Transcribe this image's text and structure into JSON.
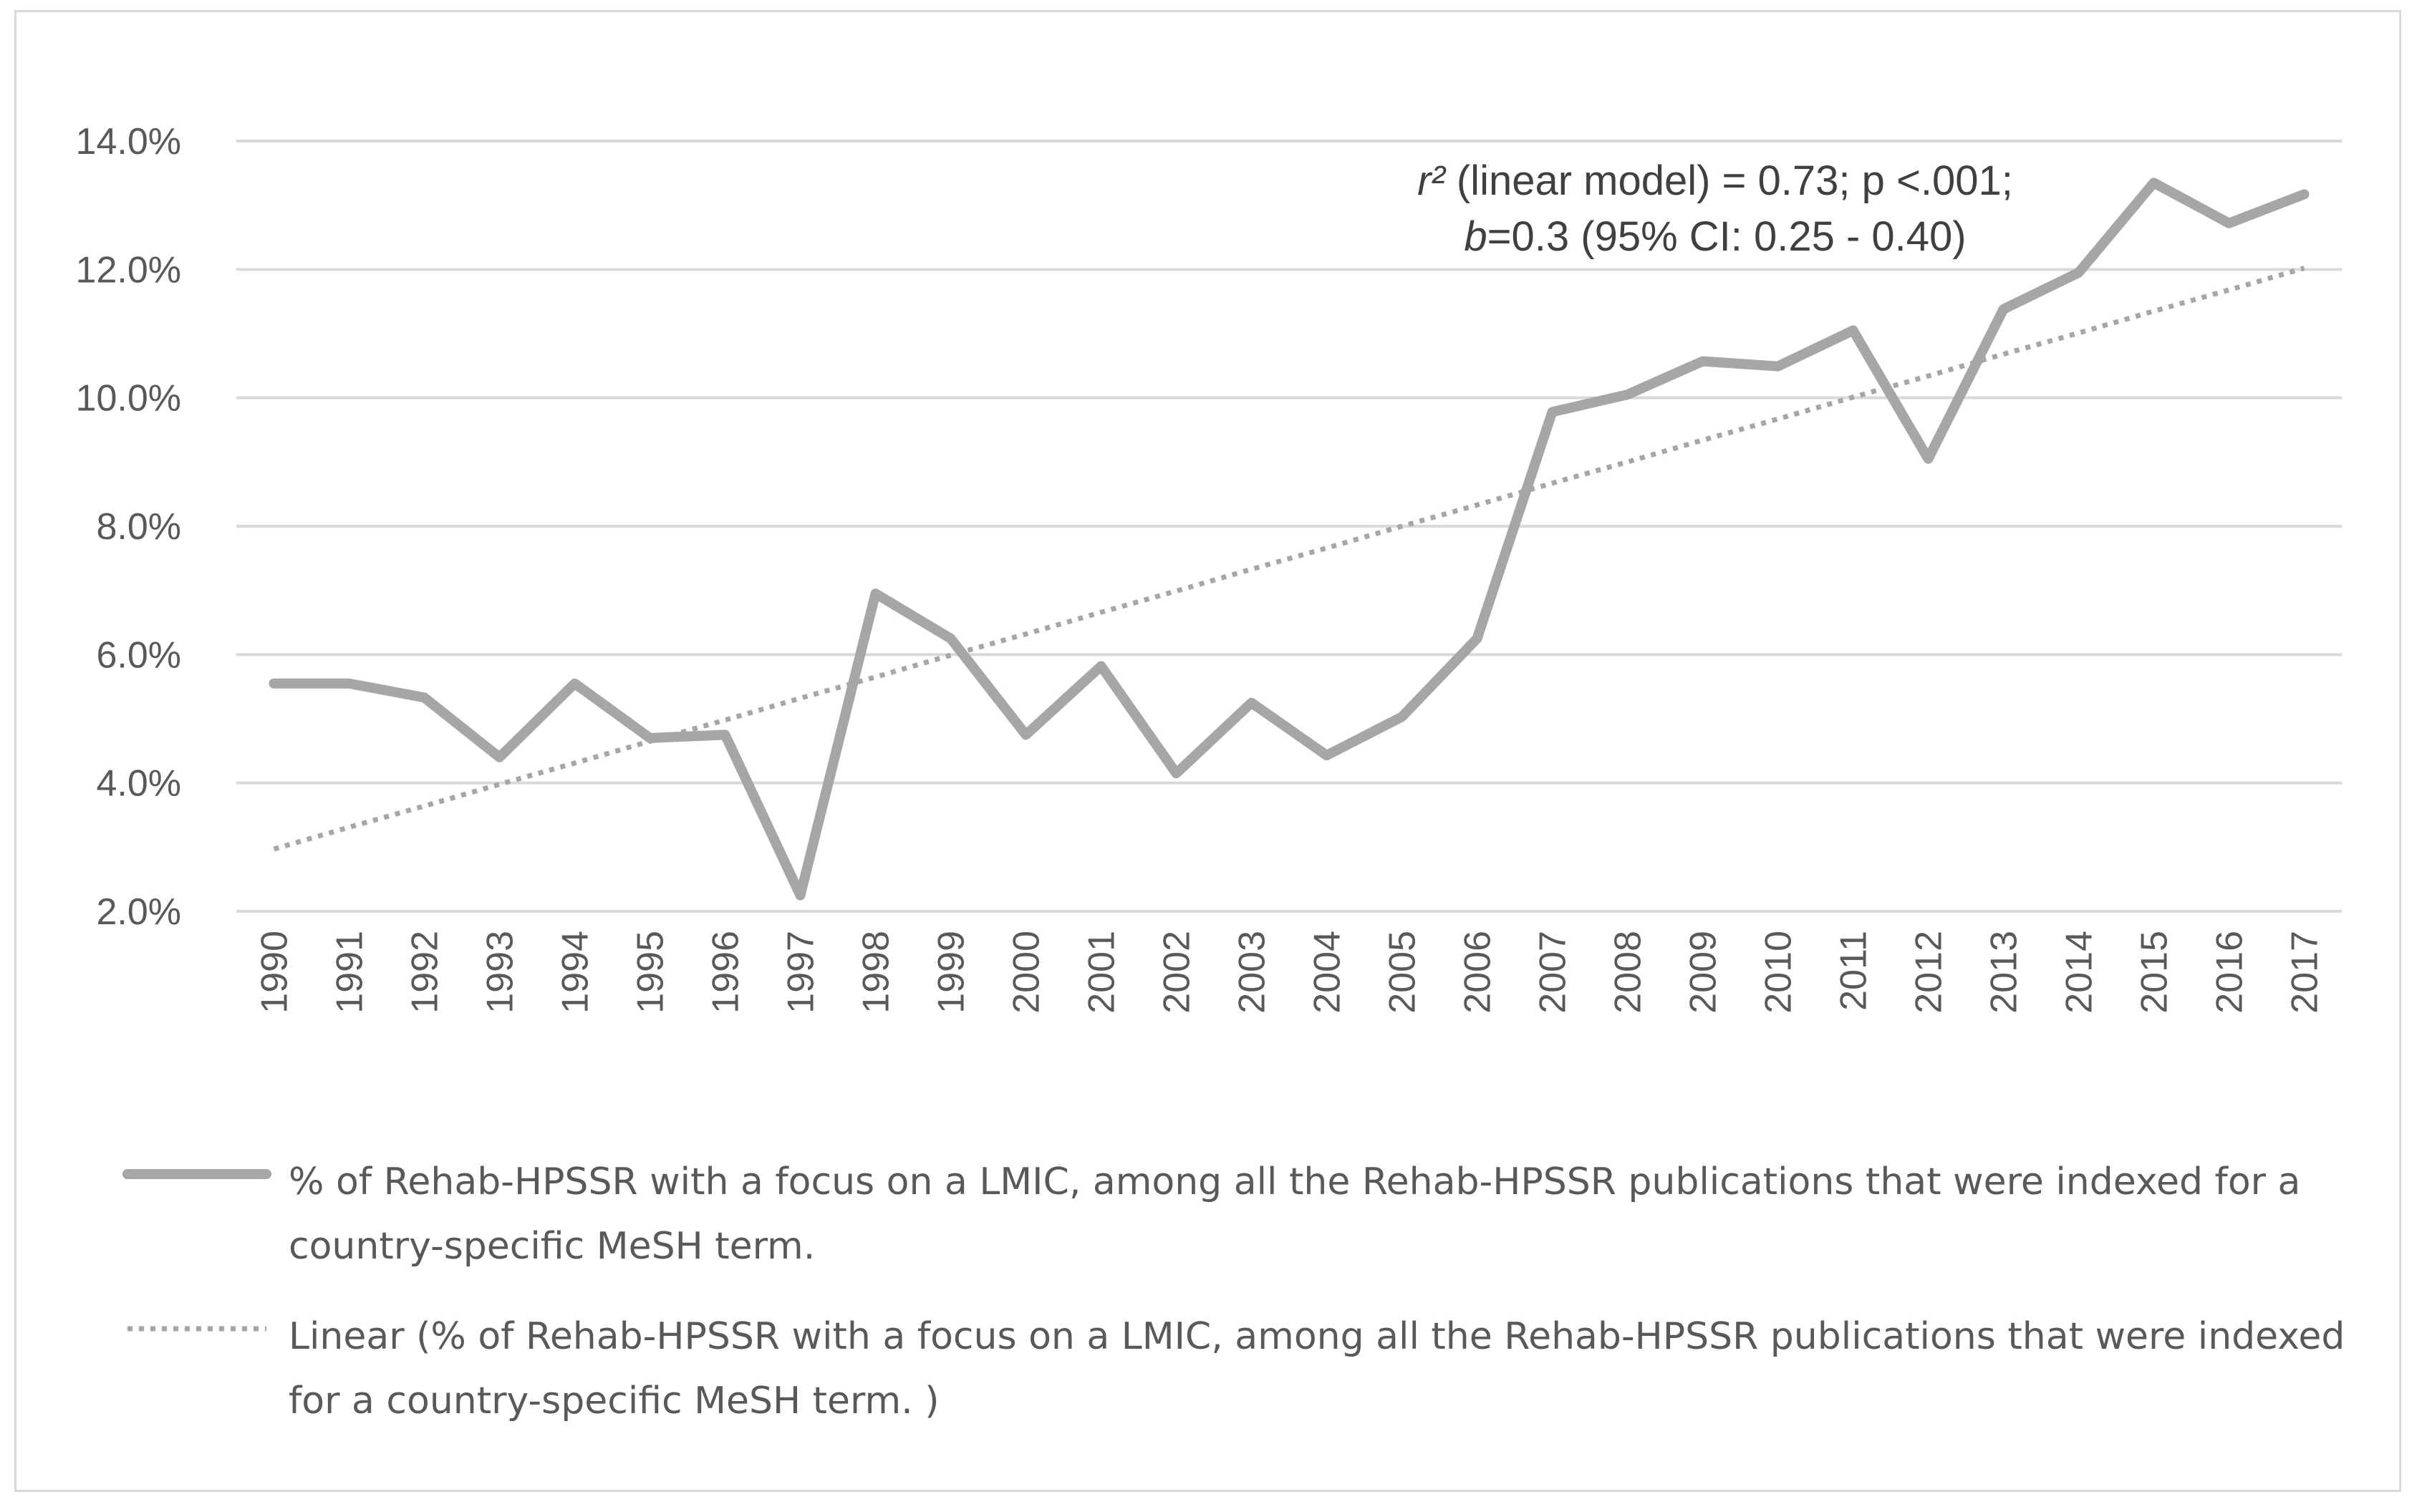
{
  "chart_data": {
    "type": "line",
    "title": "",
    "xlabel": "",
    "ylabel": "",
    "ylim": [
      2.0,
      14.0
    ],
    "ytick_values": [
      2.0,
      4.0,
      6.0,
      8.0,
      10.0,
      12.0,
      14.0
    ],
    "ytick_labels": [
      "2.0%",
      "4.0%",
      "6.0%",
      "8.0%",
      "10.0%",
      "12.0%",
      "14.0%"
    ],
    "categories": [
      "1990",
      "1991",
      "1992",
      "1993",
      "1994",
      "1995",
      "1996",
      "1997",
      "1998",
      "1999",
      "2000",
      "2001",
      "2002",
      "2003",
      "2004",
      "2005",
      "2006",
      "2007",
      "2008",
      "2009",
      "2010",
      "2011",
      "2012",
      "2013",
      "2014",
      "2015",
      "2016",
      "2017"
    ],
    "series": [
      {
        "name": "% of Rehab-HPSSR with a focus on a LMIC, among all the Rehab-HPSSR publications that were indexed for a country-specific MeSH term.",
        "style": "solid",
        "color": "#a6a6a6",
        "values": [
          5.55,
          5.55,
          5.33,
          4.4,
          5.55,
          4.7,
          4.75,
          2.25,
          6.95,
          6.25,
          4.75,
          5.82,
          4.15,
          5.25,
          4.43,
          5.03,
          6.25,
          9.78,
          10.05,
          10.57,
          10.49,
          11.05,
          9.05,
          11.38,
          11.95,
          13.35,
          12.72,
          13.17
        ]
      },
      {
        "name": "Linear (% of Rehab-HPSSR with a focus on a LMIC, among all the Rehab-HPSSR publications that were indexed for a country-specific MeSH term. )",
        "style": "dotted",
        "color": "#a6a6a6",
        "values": [
          2.97,
          3.31,
          3.64,
          3.98,
          4.31,
          4.65,
          4.98,
          5.32,
          5.65,
          5.99,
          6.32,
          6.66,
          6.99,
          7.33,
          7.66,
          8.0,
          8.33,
          8.67,
          9.0,
          9.34,
          9.67,
          10.01,
          10.34,
          10.68,
          11.01,
          11.35,
          11.68,
          12.02
        ]
      }
    ],
    "annotation": {
      "line1_var": "r²",
      "line1_rest": " (linear model) = 0.73; p <.001;",
      "line2_var": "b",
      "line2_rest": "=0.3 (95% CI: 0.25 - 0.40)"
    },
    "gridlines": true,
    "legend_position": "bottom"
  },
  "colors": {
    "series": "#a6a6a6",
    "grid": "#d9d9d9",
    "text": "#595959",
    "frame": "#d9d9d9"
  }
}
